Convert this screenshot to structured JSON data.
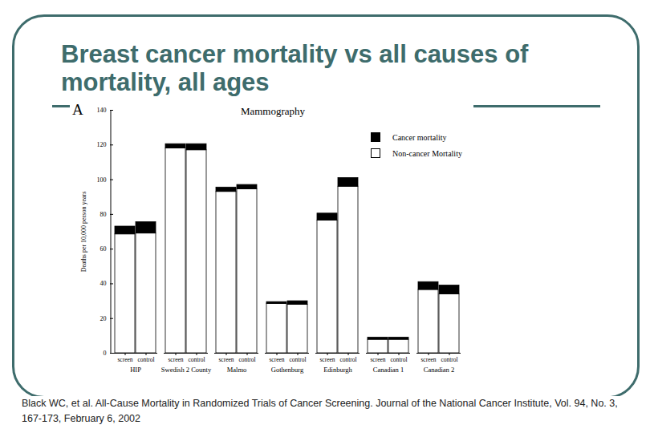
{
  "chart_data": {
    "type": "bar",
    "stacked": true,
    "title": "Breast cancer mortality vs all causes of mortality, all ages",
    "panel_label": "A",
    "subtitle": "Mammography",
    "caption": "Black WC, et al. All-Cause Mortality in Randomized Trials of Cancer Screening. Journal of the National Cancer Institute, Vol. 94, No. 3, 167-173, February 6, 2002",
    "y_label": "Deaths per 10,000 person years",
    "categories": [
      "HIP",
      "Swedish 2 County",
      "Malmo",
      "Gothenburg",
      "Edinburgh",
      "Canadian 1",
      "Canadian 2"
    ],
    "subcategories": [
      "screen",
      "control"
    ],
    "series": [
      {
        "name": "Cancer mortality",
        "color": "#000000",
        "values": [
          [
            4.5,
            6.5
          ],
          [
            2.5,
            3.5
          ],
          [
            2.5,
            2.5
          ],
          [
            1,
            2
          ],
          [
            4,
            5
          ],
          [
            1.2,
            1.2
          ],
          [
            4.5,
            5
          ]
        ]
      },
      {
        "name": "Non-cancer Mortality",
        "color": "#ffffff",
        "values": [
          [
            68.5,
            69
          ],
          [
            118,
            117
          ],
          [
            93,
            94.5
          ],
          [
            28.5,
            28
          ],
          [
            76.5,
            96
          ],
          [
            7.8,
            7.8
          ],
          [
            36.5,
            34
          ]
        ]
      }
    ],
    "ylim": [
      0,
      140
    ],
    "yticks": [
      0,
      20,
      40,
      60,
      80,
      100,
      120,
      140
    ],
    "legend": "upper right"
  }
}
